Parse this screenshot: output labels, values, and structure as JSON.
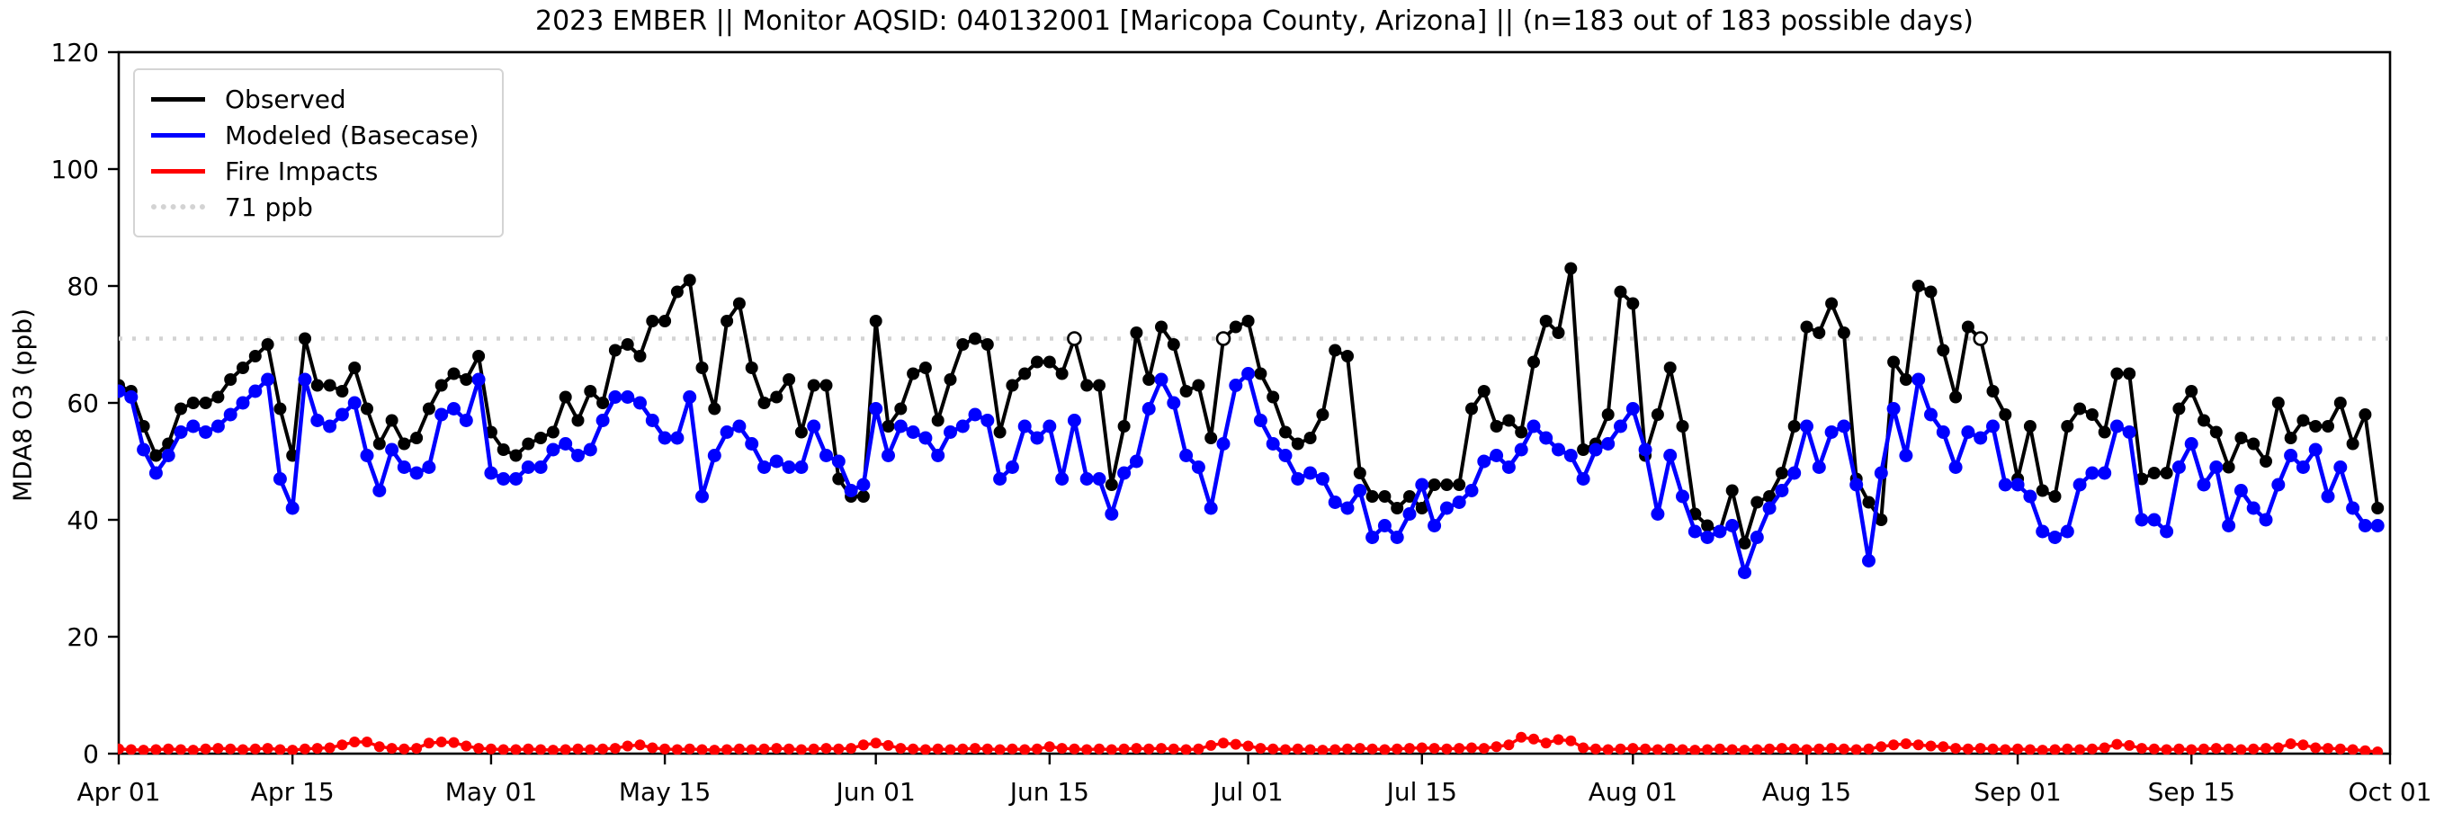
{
  "figure": {
    "background": "#ffffff"
  },
  "chart_data": {
    "type": "line",
    "title": "2023 EMBER || Monitor AQSID: 040132001 [Maricopa County, Arizona] || (n=183 out of 183 possible days)",
    "ylabel": "MDA8 O3 (ppb)",
    "xlabel": "",
    "ylim": [
      0,
      120
    ],
    "yticks": [
      0,
      20,
      40,
      60,
      80,
      100,
      120
    ],
    "x_total_days": 183,
    "x_start_label": "Apr 01",
    "x_end_label": "Oct 01",
    "xticks": [
      {
        "day": 0,
        "label": "Apr 01"
      },
      {
        "day": 14,
        "label": "Apr 15"
      },
      {
        "day": 30,
        "label": "May 01"
      },
      {
        "day": 44,
        "label": "May 15"
      },
      {
        "day": 61,
        "label": "Jun 01"
      },
      {
        "day": 75,
        "label": "Jun 15"
      },
      {
        "day": 91,
        "label": "Jul 01"
      },
      {
        "day": 105,
        "label": "Jul 15"
      },
      {
        "day": 122,
        "label": "Aug 01"
      },
      {
        "day": 136,
        "label": "Aug 15"
      },
      {
        "day": 153,
        "label": "Sep 01"
      },
      {
        "day": 167,
        "label": "Sep 15"
      },
      {
        "day": 183,
        "label": "Oct 01"
      }
    ],
    "grid": false,
    "legend_position": "upper-left",
    "legend": [
      {
        "label": "Observed",
        "color": "#000000",
        "style": "solid"
      },
      {
        "label": "Modeled (Basecase)",
        "color": "#0000ff",
        "style": "solid"
      },
      {
        "label": "Fire Impacts",
        "color": "#ff0000",
        "style": "solid"
      },
      {
        "label": "71 ppb",
        "color": "#d3d3d3",
        "style": "dotted"
      }
    ],
    "threshold": {
      "value": 71,
      "label": "71 ppb",
      "color": "#d3d3d3",
      "style": "dotted"
    },
    "open_marker_indices": [
      77,
      89,
      150
    ],
    "series": [
      {
        "name": "Observed",
        "color": "#000000",
        "values": [
          63,
          62,
          56,
          51,
          53,
          59,
          60,
          60,
          61,
          64,
          66,
          68,
          70,
          59,
          51,
          71,
          63,
          63,
          62,
          66,
          59,
          53,
          57,
          53,
          54,
          59,
          63,
          65,
          64,
          68,
          55,
          52,
          51,
          53,
          54,
          55,
          61,
          57,
          62,
          60,
          69,
          70,
          68,
          74,
          74,
          79,
          81,
          66,
          59,
          74,
          77,
          66,
          60,
          61,
          64,
          55,
          63,
          63,
          47,
          44,
          44,
          74,
          56,
          59,
          65,
          66,
          57,
          64,
          70,
          71,
          70,
          55,
          63,
          65,
          67,
          67,
          65,
          71,
          63,
          63,
          46,
          56,
          72,
          64,
          73,
          70,
          62,
          63,
          54,
          71,
          73,
          74,
          65,
          61,
          55,
          53,
          54,
          58,
          69,
          68,
          48,
          44,
          44,
          42,
          44,
          42,
          46,
          46,
          46,
          59,
          62,
          56,
          57,
          55,
          67,
          74,
          72,
          83,
          52,
          53,
          58,
          79,
          77,
          51,
          58,
          66,
          56,
          41,
          39,
          38,
          45,
          36,
          43,
          44,
          48,
          56,
          73,
          72,
          77,
          72,
          47,
          43,
          40,
          67,
          64,
          80,
          79,
          69,
          61,
          73,
          71,
          62,
          58,
          47,
          56,
          45,
          44,
          56,
          59,
          58,
          55,
          65,
          65,
          47,
          48,
          48,
          59,
          62,
          57,
          55,
          49,
          54,
          53,
          50,
          60,
          54,
          57,
          56,
          56,
          60,
          53,
          58,
          42
        ]
      },
      {
        "name": "Modeled (Basecase)",
        "color": "#0000ff",
        "values": [
          62,
          61,
          52,
          48,
          51,
          55,
          56,
          55,
          56,
          58,
          60,
          62,
          64,
          47,
          42,
          64,
          57,
          56,
          58,
          60,
          51,
          45,
          52,
          49,
          48,
          49,
          58,
          59,
          57,
          64,
          48,
          47,
          47,
          49,
          49,
          52,
          53,
          51,
          52,
          57,
          61,
          61,
          60,
          57,
          54,
          54,
          61,
          44,
          51,
          55,
          56,
          53,
          49,
          50,
          49,
          49,
          56,
          51,
          50,
          45,
          46,
          59,
          51,
          56,
          55,
          54,
          51,
          55,
          56,
          58,
          57,
          47,
          49,
          56,
          54,
          56,
          47,
          57,
          47,
          47,
          41,
          48,
          50,
          59,
          64,
          60,
          51,
          49,
          42,
          53,
          63,
          65,
          57,
          53,
          51,
          47,
          48,
          47,
          43,
          42,
          45,
          37,
          39,
          37,
          41,
          46,
          39,
          42,
          43,
          45,
          50,
          51,
          49,
          52,
          56,
          54,
          52,
          51,
          47,
          52,
          53,
          56,
          59,
          52,
          41,
          51,
          44,
          38,
          37,
          38,
          39,
          31,
          37,
          42,
          45,
          48,
          56,
          49,
          55,
          56,
          46,
          33,
          48,
          59,
          51,
          64,
          58,
          55,
          49,
          55,
          54,
          56,
          46,
          46,
          44,
          38,
          37,
          38,
          46,
          48,
          48,
          56,
          55,
          40,
          40,
          38,
          49,
          53,
          46,
          49,
          39,
          45,
          42,
          40,
          46,
          51,
          49,
          52,
          44,
          49,
          42,
          39,
          39
        ]
      },
      {
        "name": "Fire Impacts",
        "color": "#ff0000",
        "values": [
          0.8,
          0.7,
          0.6,
          0.7,
          0.8,
          0.7,
          0.6,
          0.8,
          0.9,
          0.8,
          0.7,
          0.8,
          0.9,
          0.7,
          0.6,
          0.8,
          0.9,
          1.0,
          1.5,
          2.0,
          2.0,
          1.2,
          0.9,
          0.8,
          0.9,
          1.8,
          2.0,
          1.9,
          1.3,
          0.9,
          0.8,
          0.7,
          0.7,
          0.8,
          0.7,
          0.6,
          0.7,
          0.8,
          0.7,
          0.8,
          0.9,
          1.3,
          1.5,
          1.0,
          0.8,
          0.7,
          0.8,
          0.7,
          0.6,
          0.7,
          0.8,
          0.7,
          0.8,
          0.9,
          0.8,
          0.7,
          0.8,
          0.9,
          0.8,
          0.9,
          1.5,
          1.8,
          1.4,
          0.9,
          0.8,
          0.7,
          0.8,
          0.7,
          0.8,
          0.9,
          0.8,
          0.7,
          0.8,
          0.7,
          0.8,
          1.2,
          0.9,
          0.8,
          0.7,
          0.8,
          0.7,
          0.8,
          0.9,
          0.8,
          0.9,
          0.8,
          0.7,
          0.8,
          1.4,
          1.8,
          1.6,
          1.3,
          0.9,
          0.8,
          0.7,
          0.8,
          0.7,
          0.6,
          0.7,
          0.8,
          0.9,
          0.8,
          0.7,
          0.8,
          0.9,
          1.0,
          0.9,
          0.8,
          0.9,
          1.0,
          0.9,
          1.2,
          1.5,
          2.8,
          2.5,
          1.8,
          2.4,
          2.2,
          1.0,
          0.8,
          0.7,
          0.8,
          0.9,
          0.8,
          0.7,
          0.8,
          0.7,
          0.6,
          0.7,
          0.8,
          0.7,
          0.6,
          0.7,
          0.8,
          0.9,
          0.8,
          0.7,
          0.8,
          0.9,
          0.8,
          0.7,
          0.8,
          1.2,
          1.5,
          1.7,
          1.5,
          1.3,
          1.2,
          0.9,
          0.8,
          0.9,
          0.8,
          0.7,
          0.8,
          0.7,
          0.6,
          0.7,
          0.8,
          0.7,
          0.8,
          1.0,
          1.6,
          1.4,
          0.9,
          0.8,
          0.7,
          0.8,
          0.7,
          0.8,
          0.9,
          0.8,
          0.7,
          0.8,
          0.9,
          1.0,
          1.7,
          1.5,
          1.0,
          0.9,
          0.8,
          0.7,
          0.5,
          0.3
        ]
      }
    ]
  }
}
